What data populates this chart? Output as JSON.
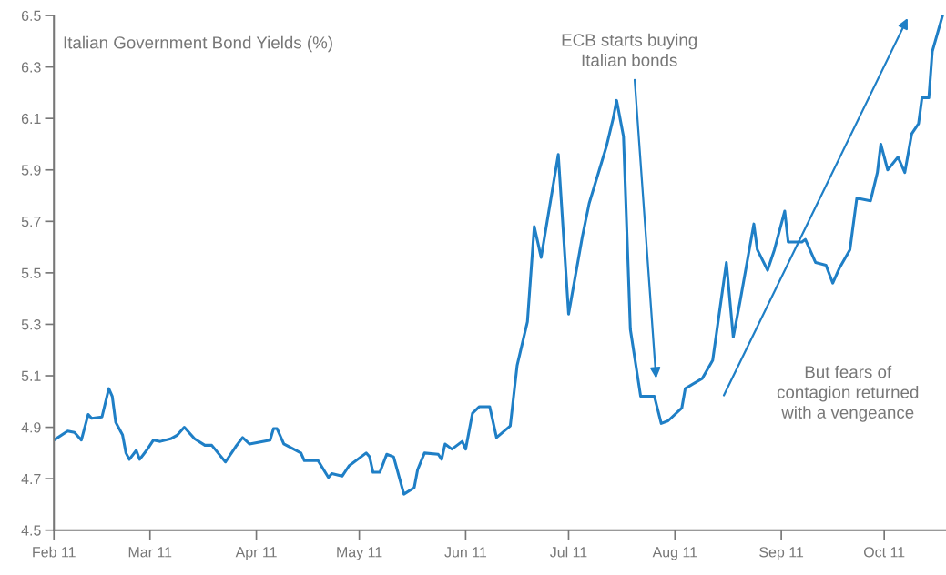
{
  "chart_data": {
    "type": "line",
    "annotations": [
      "ECB starts buying\nItalian bonds",
      "But fears of\ncontagion returned\nwith a vengeance"
    ],
    "title": "Italian Government Bond Yields (%)",
    "x": [
      "2011-02-01",
      "2011-02-05",
      "2011-02-07",
      "2011-02-09",
      "2011-02-11",
      "2011-02-12",
      "2011-02-15",
      "2011-02-17",
      "2011-02-18",
      "2011-02-19",
      "2011-02-21",
      "2011-02-22",
      "2011-02-23",
      "2011-02-25",
      "2011-02-26",
      "2011-02-28",
      "2011-03-02",
      "2011-03-04",
      "2011-03-07",
      "2011-03-09",
      "2011-03-11",
      "2011-03-14",
      "2011-03-17",
      "2011-03-19",
      "2011-03-23",
      "2011-03-26",
      "2011-03-28",
      "2011-03-30",
      "2011-04-05",
      "2011-04-06",
      "2011-04-07",
      "2011-04-09",
      "2011-04-14",
      "2011-04-15",
      "2011-04-19",
      "2011-04-22",
      "2011-04-23",
      "2011-04-26",
      "2011-04-28",
      "2011-05-03",
      "2011-05-04",
      "2011-05-05",
      "2011-05-07",
      "2011-05-09",
      "2011-05-11",
      "2011-05-14",
      "2011-05-17",
      "2011-05-18",
      "2011-05-20",
      "2011-05-24",
      "2011-05-25",
      "2011-05-26",
      "2011-05-28",
      "2011-05-31",
      "2011-06-01",
      "2011-06-03",
      "2011-06-05",
      "2011-06-08",
      "2011-06-10",
      "2011-06-14",
      "2011-06-16",
      "2011-06-19",
      "2011-06-21",
      "2011-06-23",
      "2011-06-28",
      "2011-07-01",
      "2011-07-05",
      "2011-07-07",
      "2011-07-12",
      "2011-07-14",
      "2011-07-15",
      "2011-07-17",
      "2011-07-19",
      "2011-07-22",
      "2011-07-26",
      "2011-07-28",
      "2011-07-30",
      "2011-08-03",
      "2011-08-04",
      "2011-08-09",
      "2011-08-12",
      "2011-08-16",
      "2011-08-18",
      "2011-08-20",
      "2011-08-24",
      "2011-08-25",
      "2011-08-28",
      "2011-08-30",
      "2011-09-02",
      "2011-09-03",
      "2011-09-07",
      "2011-09-08",
      "2011-09-11",
      "2011-09-14",
      "2011-09-16",
      "2011-09-18",
      "2011-09-21",
      "2011-09-23",
      "2011-09-27",
      "2011-09-29",
      "2011-09-30",
      "2011-10-02",
      "2011-10-05",
      "2011-10-07",
      "2011-10-09",
      "2011-10-11",
      "2011-10-12",
      "2011-10-14",
      "2011-10-15",
      "2011-10-18"
    ],
    "series": [
      {
        "color": "#1f7fc6",
        "values": [
          4.85,
          4.885,
          4.88,
          4.85,
          4.95,
          4.935,
          4.94,
          5.05,
          5.02,
          4.92,
          4.87,
          4.8,
          4.775,
          4.81,
          4.775,
          4.81,
          4.85,
          4.845,
          4.855,
          4.87,
          4.9,
          4.855,
          4.83,
          4.83,
          4.765,
          4.825,
          4.86,
          4.835,
          4.85,
          4.895,
          4.895,
          4.835,
          4.8,
          4.77,
          4.77,
          4.705,
          4.72,
          4.71,
          4.75,
          4.8,
          4.785,
          4.725,
          4.725,
          4.795,
          4.785,
          4.64,
          4.665,
          4.735,
          4.8,
          4.795,
          4.775,
          4.835,
          4.815,
          4.845,
          4.815,
          4.955,
          4.98,
          4.98,
          4.86,
          4.905,
          5.14,
          5.31,
          5.68,
          5.56,
          5.96,
          5.34,
          5.64,
          5.77,
          5.99,
          6.1,
          6.17,
          6.03,
          5.28,
          5.02,
          5.02,
          4.915,
          4.925,
          4.975,
          5.05,
          5.09,
          5.16,
          5.54,
          5.25,
          5.39,
          5.69,
          5.59,
          5.51,
          5.59,
          5.74,
          5.62,
          5.62,
          5.63,
          5.54,
          5.53,
          5.46,
          5.52,
          5.59,
          5.79,
          5.78,
          5.89,
          6.0,
          5.9,
          5.95,
          5.89,
          6.04,
          6.08,
          6.18,
          6.18,
          6.36,
          6.5
        ]
      }
    ],
    "xlim": [
      "2011-02-01",
      "2011-10-19"
    ],
    "xticks": [
      {
        "value": "2011-02-01",
        "label": "Feb 11"
      },
      {
        "value": "2011-03-01",
        "label": "Mar 11"
      },
      {
        "value": "2011-04-01",
        "label": "Apr 11"
      },
      {
        "value": "2011-05-01",
        "label": "May 11"
      },
      {
        "value": "2011-06-01",
        "label": "Jun 11"
      },
      {
        "value": "2011-07-01",
        "label": "Jul 11"
      },
      {
        "value": "2011-08-01",
        "label": "Aug 11"
      },
      {
        "value": "2011-09-01",
        "label": "Sep 11"
      },
      {
        "value": "2011-10-01",
        "label": "Oct 11"
      }
    ],
    "ylim": [
      4.5,
      6.5
    ],
    "yticks": [
      {
        "value": 4.5,
        "label": "4.5"
      },
      {
        "value": 4.7,
        "label": "4.7"
      },
      {
        "value": 4.9,
        "label": "4.9"
      },
      {
        "value": 5.1,
        "label": "5.1"
      },
      {
        "value": 5.3,
        "label": "5.3"
      },
      {
        "value": 5.5,
        "label": "5.5"
      },
      {
        "value": 5.7,
        "label": "5.7"
      },
      {
        "value": 5.9,
        "label": "5.9"
      },
      {
        "value": 6.1,
        "label": "6.1"
      },
      {
        "value": 6.3,
        "label": "6.3"
      },
      {
        "value": 6.5,
        "label": "6.5"
      }
    ],
    "grid": false,
    "legend": false
  }
}
